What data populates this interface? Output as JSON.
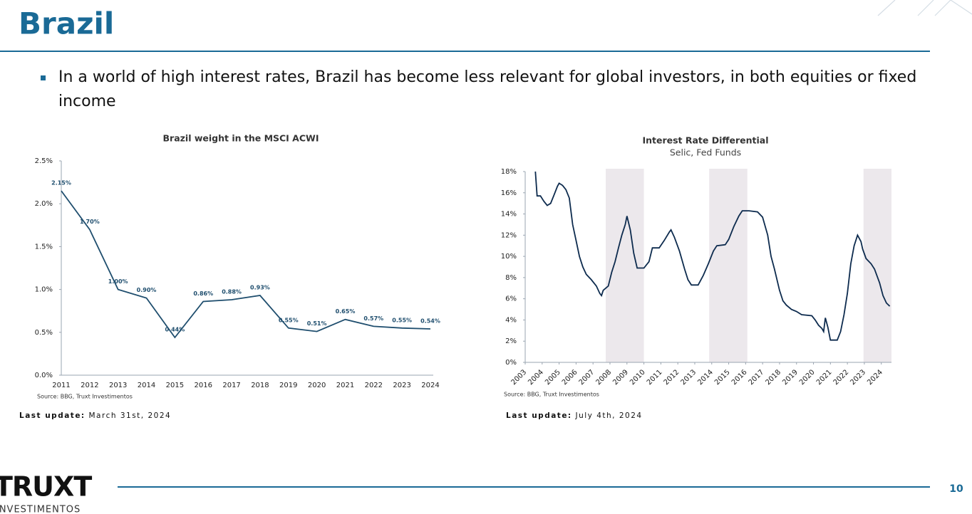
{
  "header": {
    "title": "Brazil"
  },
  "bullets": [
    "In a world of high interest rates, Brazil has become less relevant for global investors, in both equities or fixed income"
  ],
  "chart_data": [
    {
      "type": "line",
      "title": "Brazil weight in the MSCI ACWI",
      "source": "Source: BBG, Truxt Investimentos",
      "categories": [
        "2011",
        "2012",
        "2013",
        "2014",
        "2015",
        "2016",
        "2017",
        "2018",
        "2019",
        "2020",
        "2021",
        "2022",
        "2023",
        "2024"
      ],
      "series": [
        {
          "name": "Brazil weight",
          "color": "#1f4e6e",
          "values": [
            2.15,
            1.7,
            1.0,
            0.9,
            0.44,
            0.86,
            0.88,
            0.93,
            0.55,
            0.51,
            0.65,
            0.57,
            0.55,
            0.54
          ],
          "value_labels": [
            "2.15%",
            "1.70%",
            "1.00%",
            "0.90%",
            "0.44%",
            "0.86%",
            "0.88%",
            "0.93%",
            "0.55%",
            "0.51%",
            "0.65%",
            "0.57%",
            "0.55%",
            "0.54%"
          ]
        }
      ],
      "ylim": [
        0,
        2.5
      ],
      "yticks": [
        {
          "value": 0,
          "label": "0.0%"
        },
        {
          "value": 0.5,
          "label": "0.5%"
        },
        {
          "value": 1,
          "label": "1.0%"
        },
        {
          "value": 1.5,
          "label": "1.5%"
        },
        {
          "value": 2,
          "label": "2.0%"
        },
        {
          "value": 2.5,
          "label": "2.5%"
        }
      ]
    },
    {
      "type": "line",
      "title": "Interest Rate Differential",
      "subtitle": "Selic, Fed Funds",
      "source": "Source: BBG, Truxt Investimentos",
      "x": [
        2003.6,
        2003.7,
        2003.9,
        2004.1,
        2004.3,
        2004.5,
        2004.7,
        2004.9,
        2005.0,
        2005.2,
        2005.4,
        2005.6,
        2005.8,
        2006.0,
        2006.2,
        2006.4,
        2006.6,
        2006.9,
        2007.2,
        2007.4,
        2007.5,
        2007.6,
        2007.9,
        2008.1,
        2008.3,
        2008.5,
        2008.7,
        2008.9,
        2009.0,
        2009.2,
        2009.4,
        2009.6,
        2010.0,
        2010.3,
        2010.5,
        2010.9,
        2011.2,
        2011.5,
        2011.6,
        2011.8,
        2012.1,
        2012.4,
        2012.6,
        2012.8,
        2013.2,
        2013.5,
        2013.8,
        2014.1,
        2014.3,
        2014.8,
        2015.0,
        2015.3,
        2015.6,
        2015.8,
        2016.2,
        2016.7,
        2017.0,
        2017.3,
        2017.5,
        2017.7,
        2018.0,
        2018.2,
        2018.4,
        2018.7,
        2019.0,
        2019.3,
        2019.9,
        2020.1,
        2020.3,
        2020.5,
        2020.6,
        2020.7,
        2020.85,
        2021.0,
        2021.4,
        2021.6,
        2021.8,
        2022.0,
        2022.2,
        2022.4,
        2022.6,
        2022.8,
        2022.9,
        2023.1,
        2023.4,
        2023.6,
        2023.9,
        2024.1,
        2024.3,
        2024.5
      ],
      "series": [
        {
          "name": "Selic - Fed Funds",
          "color": "#0d2b4e",
          "values": [
            18,
            15.7,
            15.7,
            15.2,
            14.8,
            15.0,
            15.8,
            16.6,
            16.9,
            16.7,
            16.3,
            15.5,
            13,
            11.5,
            10,
            9,
            8.3,
            7.8,
            7.2,
            6.5,
            6.3,
            6.8,
            7.2,
            8.5,
            9.5,
            10.8,
            12,
            13,
            13.8,
            12.5,
            10.3,
            8.9,
            8.9,
            9.5,
            10.8,
            10.8,
            11.5,
            12.3,
            12.5,
            11.8,
            10.5,
            8.8,
            7.8,
            7.3,
            7.3,
            8.2,
            9.3,
            10.5,
            11.0,
            11.1,
            11.6,
            12.8,
            13.8,
            14.3,
            14.3,
            14.2,
            13.7,
            12,
            10,
            8.8,
            6.8,
            5.8,
            5.4,
            5.0,
            4.8,
            4.5,
            4.4,
            4.0,
            3.5,
            3.2,
            2.9,
            4.2,
            3.3,
            2.1,
            2.1,
            2.9,
            4.5,
            6.5,
            9.3,
            11,
            12.0,
            11.4,
            10.7,
            9.8,
            9.3,
            8.8,
            7.5,
            6.3,
            5.6,
            5.3
          ]
        }
      ],
      "bands": [
        [
          2007.75,
          2010.0
        ],
        [
          2013.85,
          2016.1
        ],
        [
          2022.95,
          2024.6
        ]
      ],
      "band_color": "#ece8ec",
      "xlim": [
        2003,
        2024.6
      ],
      "xticks": [
        2003,
        2004,
        2005,
        2006,
        2007,
        2008,
        2009,
        2010,
        2011,
        2012,
        2013,
        2014,
        2015,
        2016,
        2017,
        2018,
        2019,
        2020,
        2021,
        2022,
        2023,
        2024
      ],
      "ylim": [
        0,
        18
      ],
      "yticks": [
        {
          "value": 0,
          "label": "0%"
        },
        {
          "value": 2,
          "label": "2%"
        },
        {
          "value": 4,
          "label": "4%"
        },
        {
          "value": 6,
          "label": "6%"
        },
        {
          "value": 8,
          "label": "8%"
        },
        {
          "value": 10,
          "label": "10%"
        },
        {
          "value": 12,
          "label": "12%"
        },
        {
          "value": 14,
          "label": "14%"
        },
        {
          "value": 16,
          "label": "16%"
        },
        {
          "value": 18,
          "label": "18%"
        }
      ]
    }
  ],
  "updates": [
    {
      "label": "Last update:",
      "date": "March 31st, 2024"
    },
    {
      "label": "Last update:",
      "date": "July 4th, 2024"
    }
  ],
  "footer": {
    "logo": "TRUXT",
    "logo_sub": "INVESTIMENTOS",
    "page": "10"
  }
}
